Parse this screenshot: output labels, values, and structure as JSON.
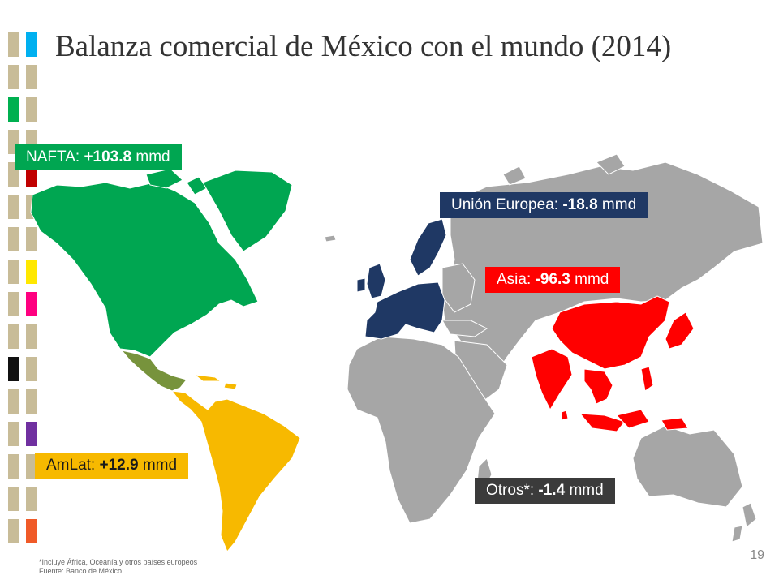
{
  "title": "Balanza comercial de México con el mundo (2014)",
  "regions": {
    "nafta": {
      "name": "NAFTA:",
      "value": "+103.8",
      "unit": "mmd",
      "color": "#00a651"
    },
    "amlat": {
      "name": "AmLat:",
      "value": "+12.9",
      "unit": "mmd",
      "color": "#f7b900"
    },
    "ue": {
      "name": "Unión Europea:",
      "value": "-18.8",
      "unit": "mmd",
      "color": "#1f3864"
    },
    "asia": {
      "name": "Asia:",
      "value": "-96.3",
      "unit": "mmd",
      "color": "#ff0000"
    },
    "otros": {
      "name": "Otros*:",
      "value": "-1.4",
      "unit": "mmd",
      "color": "#3b3b3b"
    }
  },
  "colors": {
    "mexico": "#77933c",
    "rest_of_world": "#a6a6a6",
    "strip_neutral": "#c8bc98"
  },
  "footnote": {
    "line1": "*Incluye África, Oceanía y otros países europeos",
    "line2": "Fuente: Banco de México"
  },
  "page_number": "19"
}
